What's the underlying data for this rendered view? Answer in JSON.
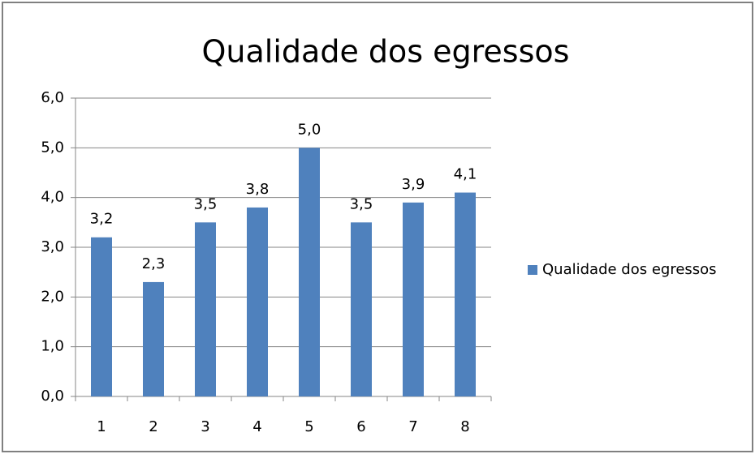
{
  "chart_data": {
    "type": "bar",
    "title": "Qualidade dos egressos",
    "categories": [
      "1",
      "2",
      "3",
      "4",
      "5",
      "6",
      "7",
      "8"
    ],
    "series": [
      {
        "name": "Qualidade dos egressos",
        "color": "#4f81bd",
        "values": [
          3.2,
          2.3,
          3.5,
          3.8,
          5.0,
          3.5,
          3.9,
          4.1
        ],
        "value_labels": [
          "3,2",
          "2,3",
          "3,5",
          "3,8",
          "5,0",
          "3,5",
          "3,9",
          "4,1"
        ]
      }
    ],
    "ylim": [
      0,
      6
    ],
    "yticks": [
      {
        "value": 0,
        "label": "0,0"
      },
      {
        "value": 1,
        "label": "1,0"
      },
      {
        "value": 2,
        "label": "2,0"
      },
      {
        "value": 3,
        "label": "3,0"
      },
      {
        "value": 4,
        "label": "4,0"
      },
      {
        "value": 5,
        "label": "5,0"
      },
      {
        "value": 6,
        "label": "6,0"
      }
    ],
    "grid": true,
    "legend": "right"
  }
}
